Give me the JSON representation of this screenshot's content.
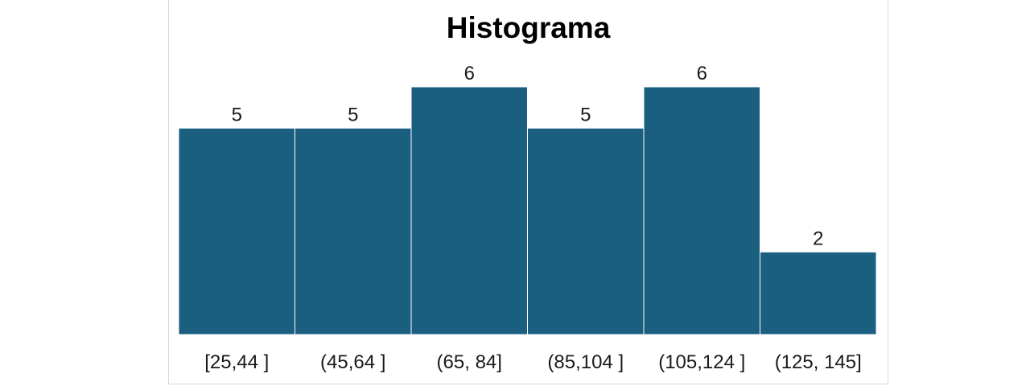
{
  "chart_data": {
    "type": "bar",
    "title": "Histograma",
    "xlabel": "",
    "ylabel": "",
    "categories": [
      "[25,44 ]",
      "(45,64 ]",
      "(65, 84]",
      "(85,104 ]",
      "(105,124 ]",
      "(125, 145]"
    ],
    "values": [
      5,
      5,
      6,
      5,
      6,
      2
    ],
    "ylim": [
      0,
      6
    ],
    "grid": false,
    "bar_color": "#1a5e80",
    "bar_gap": 0
  }
}
